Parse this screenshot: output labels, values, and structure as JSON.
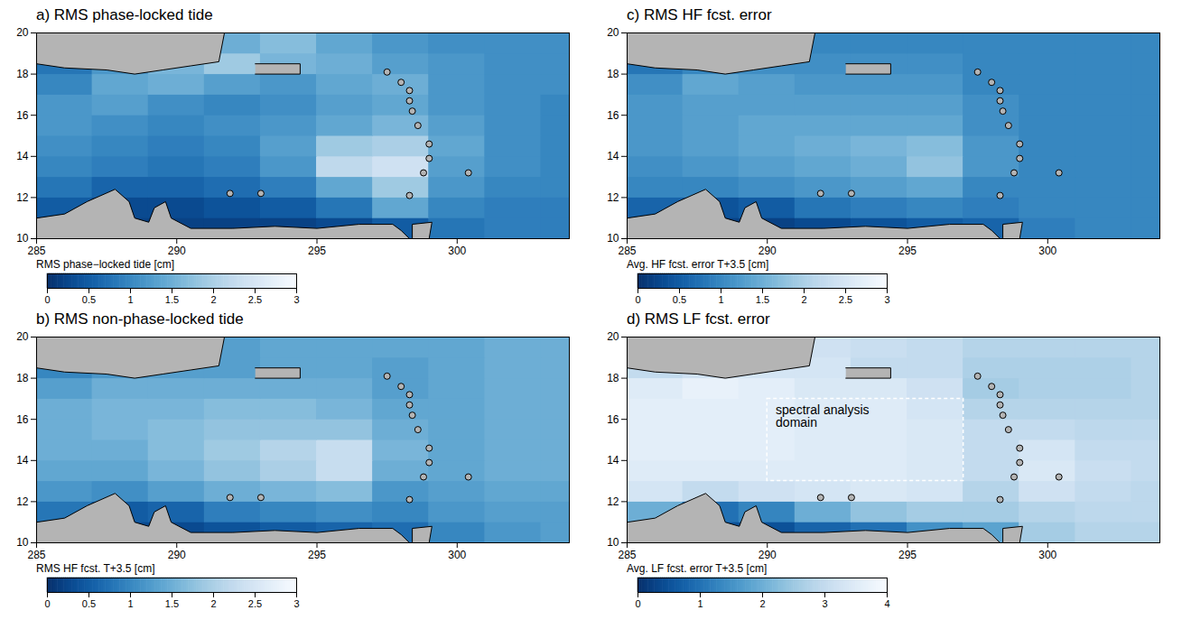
{
  "chart_data": [
    {
      "type": "heatmap",
      "title": "a) RMS phase-locked tide",
      "xlim": [
        285,
        304
      ],
      "xticks": [
        285,
        290,
        295,
        300
      ],
      "ylim": [
        10,
        20
      ],
      "yticks": [
        10,
        12,
        14,
        16,
        18,
        20
      ],
      "cells": {
        "lon_edges": [
          285,
          287,
          289,
          291,
          293,
          295,
          297,
          299,
          301,
          303,
          305
        ],
        "lat_edges": [
          10,
          11,
          12,
          13,
          14,
          15,
          16,
          17,
          18,
          19,
          20
        ],
        "values": [
          [
            0.3,
            0.2,
            0.2,
            0.2,
            0.2,
            0.3,
            0.5,
            0.8,
            0.9,
            0.9
          ],
          [
            0.5,
            0.3,
            0.3,
            0.4,
            0.5,
            0.8,
            1.4,
            1.0,
            0.9,
            0.9
          ],
          [
            0.8,
            0.6,
            0.6,
            0.7,
            0.9,
            1.4,
            1.9,
            1.2,
            1.0,
            1.0
          ],
          [
            1.0,
            0.9,
            0.8,
            0.9,
            1.2,
            2.2,
            2.4,
            1.3,
            1.1,
            1.0
          ],
          [
            1.1,
            1.0,
            0.9,
            1.0,
            1.3,
            1.9,
            2.0,
            1.4,
            1.1,
            1.0
          ],
          [
            1.2,
            1.1,
            1.0,
            1.1,
            1.2,
            1.4,
            1.6,
            1.3,
            1.1,
            1.0
          ],
          [
            1.2,
            1.3,
            1.1,
            1.0,
            1.1,
            1.3,
            1.4,
            1.2,
            1.1,
            1.0
          ],
          [
            1.0,
            1.4,
            1.5,
            1.3,
            1.2,
            1.4,
            1.5,
            1.2,
            1.1,
            1.1
          ],
          [
            0.8,
            1.2,
            1.6,
            1.9,
            1.6,
            1.5,
            1.3,
            1.2,
            1.1,
            1.1
          ],
          [
            0.8,
            1.0,
            1.3,
            1.5,
            1.7,
            1.4,
            1.2,
            1.1,
            1.1,
            1.1
          ]
        ]
      },
      "colorbar": {
        "label": "RMS phase−locked tide [cm]",
        "range": [
          0,
          3
        ],
        "ticks": [
          0,
          0.5,
          1,
          1.5,
          2,
          2.5,
          3
        ]
      },
      "annotations": []
    },
    {
      "type": "heatmap",
      "title": "b) RMS non-phase-locked tide",
      "xlim": [
        285,
        304
      ],
      "xticks": [
        285,
        290,
        295,
        300
      ],
      "ylim": [
        10,
        20
      ],
      "yticks": [
        10,
        12,
        14,
        16,
        18,
        20
      ],
      "cells": {
        "lon_edges": [
          285,
          287,
          289,
          291,
          293,
          295,
          297,
          299,
          301,
          303,
          305
        ],
        "lat_edges": [
          10,
          11,
          12,
          13,
          14,
          15,
          16,
          17,
          18,
          19,
          20
        ],
        "values": [
          [
            0.4,
            0.3,
            0.3,
            0.4,
            0.5,
            0.6,
            0.7,
            1.0,
            1.2,
            1.3
          ],
          [
            0.8,
            0.5,
            0.6,
            0.9,
            1.0,
            1.1,
            1.0,
            1.2,
            1.3,
            1.3
          ],
          [
            1.2,
            1.1,
            1.3,
            1.5,
            1.6,
            1.7,
            1.2,
            1.3,
            1.4,
            1.4
          ],
          [
            1.4,
            1.4,
            1.6,
            1.8,
            2.0,
            2.3,
            1.5,
            1.4,
            1.5,
            1.5
          ],
          [
            1.5,
            1.5,
            1.7,
            1.9,
            2.1,
            2.3,
            1.6,
            1.4,
            1.5,
            1.5
          ],
          [
            1.5,
            1.6,
            1.7,
            1.8,
            1.8,
            1.8,
            1.5,
            1.4,
            1.5,
            1.5
          ],
          [
            1.5,
            1.6,
            1.6,
            1.7,
            1.7,
            1.6,
            1.4,
            1.4,
            1.5,
            1.5
          ],
          [
            1.3,
            1.5,
            1.5,
            1.5,
            1.5,
            1.5,
            1.3,
            1.4,
            1.5,
            1.5
          ],
          [
            1.0,
            1.2,
            1.3,
            1.3,
            1.4,
            1.4,
            1.3,
            1.4,
            1.5,
            1.5
          ],
          [
            0.9,
            1.1,
            1.2,
            1.3,
            1.4,
            1.4,
            1.4,
            1.4,
            1.5,
            1.5
          ]
        ]
      },
      "colorbar": {
        "label": "RMS HF fcst. T+3.5 [cm]",
        "range": [
          0,
          3
        ],
        "ticks": [
          0,
          0.5,
          1,
          1.5,
          2,
          2.5,
          3
        ]
      },
      "annotations": []
    },
    {
      "type": "heatmap",
      "title": "c) RMS HF fcst. error",
      "xlim": [
        285,
        304
      ],
      "xticks": [
        285,
        290,
        295,
        300
      ],
      "ylim": [
        10,
        20
      ],
      "yticks": [
        10,
        12,
        14,
        16,
        18,
        20
      ],
      "cells": {
        "lon_edges": [
          285,
          287,
          289,
          291,
          293,
          295,
          297,
          299,
          301,
          303,
          305
        ],
        "lat_edges": [
          10,
          11,
          12,
          13,
          14,
          15,
          16,
          17,
          18,
          19,
          20
        ],
        "values": [
          [
            0.3,
            0.2,
            0.2,
            0.3,
            0.4,
            0.5,
            0.6,
            0.9,
            1.0,
            1.0
          ],
          [
            0.6,
            0.4,
            0.5,
            0.8,
            0.9,
            1.0,
            0.9,
            1.0,
            1.0,
            1.0
          ],
          [
            1.0,
            1.0,
            1.1,
            1.2,
            1.3,
            1.4,
            1.0,
            1.0,
            1.0,
            1.0
          ],
          [
            1.1,
            1.2,
            1.3,
            1.4,
            1.5,
            1.8,
            1.2,
            1.0,
            1.0,
            1.0
          ],
          [
            1.2,
            1.3,
            1.4,
            1.5,
            1.6,
            1.7,
            1.2,
            1.0,
            1.0,
            1.0
          ],
          [
            1.2,
            1.3,
            1.4,
            1.4,
            1.4,
            1.4,
            1.1,
            1.0,
            1.0,
            1.0
          ],
          [
            1.2,
            1.3,
            1.3,
            1.3,
            1.3,
            1.3,
            1.1,
            1.0,
            1.0,
            1.0
          ],
          [
            1.1,
            1.4,
            1.3,
            1.2,
            1.2,
            1.2,
            1.0,
            1.0,
            1.0,
            1.0
          ],
          [
            0.8,
            1.0,
            1.1,
            1.1,
            1.1,
            1.1,
            1.0,
            1.0,
            1.0,
            1.0
          ],
          [
            0.7,
            0.9,
            1.0,
            1.0,
            1.0,
            1.0,
            1.0,
            1.0,
            1.0,
            1.0
          ]
        ]
      },
      "colorbar": {
        "label": "Avg. HF fcst. error T+3.5 [cm]",
        "range": [
          0,
          3
        ],
        "ticks": [
          0,
          0.5,
          1,
          1.5,
          2,
          2.5,
          3
        ]
      },
      "annotations": []
    },
    {
      "type": "heatmap",
      "title": "d) RMS LF fcst. error",
      "xlim": [
        285,
        304
      ],
      "xticks": [
        285,
        290,
        295,
        300
      ],
      "ylim": [
        10,
        20
      ],
      "yticks": [
        10,
        12,
        14,
        16,
        18,
        20
      ],
      "cells": {
        "lon_edges": [
          285,
          287,
          289,
          291,
          293,
          295,
          297,
          299,
          301,
          303,
          305
        ],
        "lat_edges": [
          10,
          11,
          12,
          13,
          14,
          15,
          16,
          17,
          18,
          19,
          20
        ],
        "values": [
          [
            0.8,
            0.5,
            0.5,
            0.8,
            1.0,
            1.5,
            1.8,
            2.6,
            2.8,
            2.8
          ],
          [
            2.0,
            1.0,
            1.3,
            2.0,
            2.4,
            2.6,
            2.6,
            2.8,
            2.9,
            2.9
          ],
          [
            3.3,
            3.0,
            3.2,
            3.3,
            3.4,
            3.3,
            2.8,
            3.2,
            3.0,
            2.9
          ],
          [
            3.5,
            3.5,
            3.5,
            3.5,
            3.5,
            3.4,
            3.0,
            3.4,
            3.1,
            3.0
          ],
          [
            3.6,
            3.6,
            3.6,
            3.5,
            3.5,
            3.4,
            3.0,
            3.3,
            3.0,
            3.0
          ],
          [
            3.6,
            3.6,
            3.6,
            3.5,
            3.5,
            3.4,
            3.0,
            3.0,
            2.9,
            2.9
          ],
          [
            3.6,
            3.6,
            3.6,
            3.5,
            3.5,
            3.3,
            2.8,
            2.8,
            2.8,
            2.8
          ],
          [
            3.5,
            3.7,
            3.6,
            3.4,
            3.4,
            3.2,
            2.6,
            2.7,
            2.7,
            2.8
          ],
          [
            3.0,
            3.2,
            3.3,
            3.3,
            3.0,
            3.0,
            2.7,
            2.7,
            2.7,
            2.8
          ],
          [
            3.0,
            3.1,
            3.2,
            3.2,
            3.1,
            3.0,
            2.8,
            2.8,
            2.8,
            2.8
          ]
        ]
      },
      "colorbar": {
        "label": "Avg. LF fcst. error T+3.5 [cm]",
        "range": [
          0,
          4
        ],
        "ticks": [
          0,
          1,
          2,
          3,
          4
        ]
      },
      "annotations": [
        {
          "text": "spectral analysis domain",
          "x": 290.3,
          "y": 16.7,
          "box": {
            "x1": 290,
            "x2": 297,
            "y1": 13,
            "y2": 17
          }
        }
      ]
    }
  ],
  "map": {
    "land": [
      [
        [
          285,
          20
        ],
        [
          285,
          18.5
        ],
        [
          286,
          18.3
        ],
        [
          287.5,
          18.2
        ],
        [
          288.5,
          18.0
        ],
        [
          289.5,
          18.2
        ],
        [
          290.5,
          18.4
        ],
        [
          291.5,
          18.6
        ],
        [
          291.7,
          20
        ]
      ],
      [
        [
          292.8,
          18.0
        ],
        [
          294.4,
          18.0
        ],
        [
          294.4,
          18.5
        ],
        [
          292.8,
          18.5
        ]
      ],
      [
        [
          285,
          10
        ],
        [
          285,
          11.0
        ],
        [
          286,
          11.2
        ],
        [
          286.8,
          11.8
        ],
        [
          287.8,
          12.4
        ],
        [
          288.3,
          11.8
        ],
        [
          288.5,
          11.0
        ],
        [
          289,
          10.8
        ],
        [
          289.2,
          11.5
        ],
        [
          289.6,
          11.8
        ],
        [
          289.8,
          11.0
        ],
        [
          290.5,
          10.5
        ],
        [
          292,
          10.5
        ],
        [
          293.5,
          10.6
        ],
        [
          295,
          10.5
        ],
        [
          296.5,
          10.7
        ],
        [
          297.7,
          10.7
        ],
        [
          298,
          10.4
        ],
        [
          298.3,
          10
        ]
      ],
      [
        [
          298.4,
          10
        ],
        [
          298.4,
          10.7
        ],
        [
          299.1,
          10.8
        ],
        [
          299,
          10
        ]
      ]
    ],
    "islands": [
      [
        297.5,
        18.1
      ],
      [
        298,
        17.6
      ],
      [
        298.3,
        17.2
      ],
      [
        298.3,
        16.7
      ],
      [
        298.4,
        16.2
      ],
      [
        298.6,
        15.5
      ],
      [
        299.0,
        14.6
      ],
      [
        299.0,
        13.9
      ],
      [
        298.8,
        13.2
      ],
      [
        298.3,
        12.1
      ],
      [
        300.4,
        13.2
      ],
      [
        293,
        12.2
      ],
      [
        291.9,
        12.2
      ]
    ]
  }
}
